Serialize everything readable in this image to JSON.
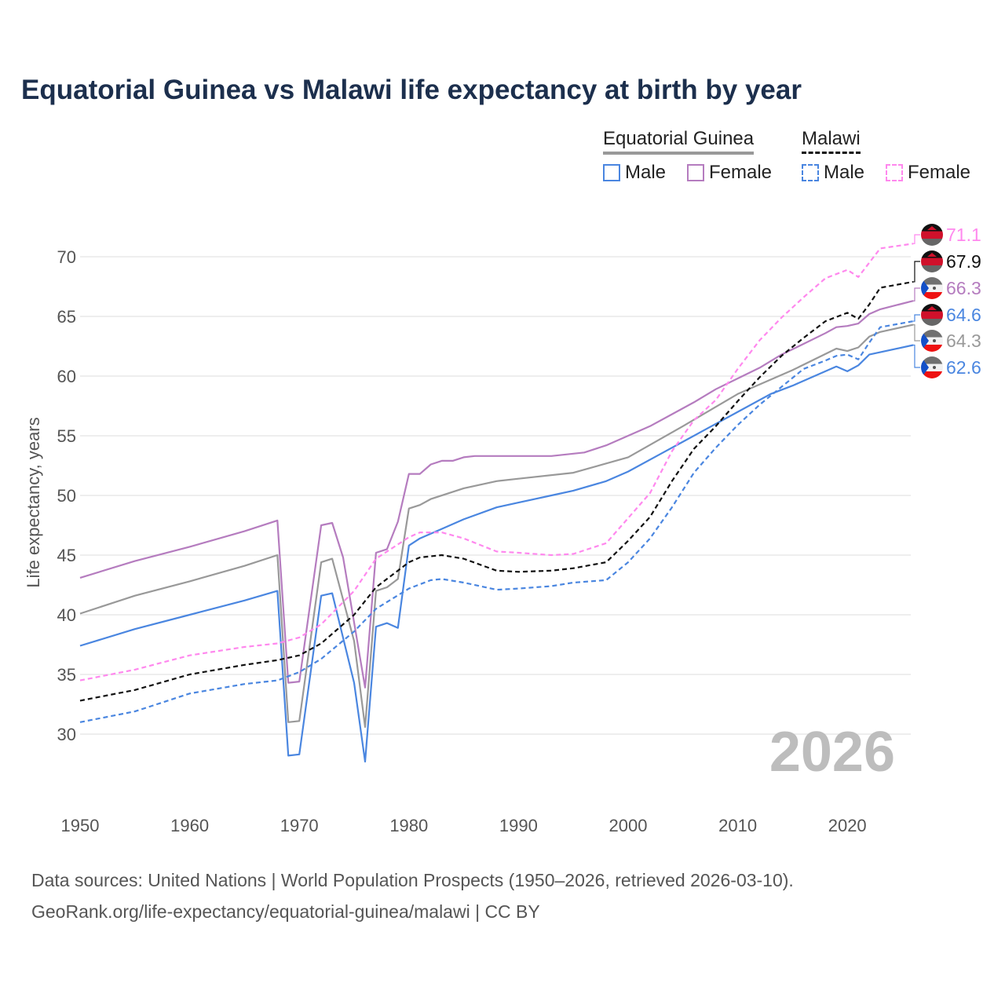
{
  "title": "Equatorial Guinea vs Malawi life expectancy at birth by year",
  "legend": {
    "groups": [
      {
        "label": "Equatorial Guinea",
        "color": "#999999",
        "dashed": false
      },
      {
        "label": "Malawi",
        "color": "#111111",
        "dashed": true
      }
    ],
    "items": [
      {
        "label": "Male",
        "color": "#4a86e0",
        "dashed": false
      },
      {
        "label": "Female",
        "color": "#b57cbf",
        "dashed": false
      },
      {
        "label": "Male",
        "color": "#4a86e0",
        "dashed": true
      },
      {
        "label": "Female",
        "color": "#ff88ee",
        "dashed": true
      }
    ]
  },
  "year_watermark": "2026",
  "source_line1": "Data sources: United Nations | World Population Prospects (1950–2026, retrieved 2026-03-10).",
  "source_line2": "GeoRank.org/life-expectancy/equatorial-guinea/malawi | CC BY",
  "chart_data": {
    "type": "line",
    "title": "Equatorial Guinea vs Malawi life expectancy at birth by year",
    "xlabel": "",
    "ylabel": "Life expectancy, years",
    "xlim": [
      1950,
      2026
    ],
    "ylim": [
      25.5,
      73
    ],
    "xticks": [
      1950,
      1960,
      1970,
      1980,
      1990,
      2000,
      2010,
      2020
    ],
    "yticks": [
      30,
      35,
      40,
      45,
      50,
      55,
      60,
      65,
      70
    ],
    "grid": true,
    "legend_position": "top-right",
    "series": [
      {
        "name": "Equatorial Guinea (total)",
        "color": "#999999",
        "dashed": false,
        "end_label": "64.3",
        "flag": "equatorial-guinea",
        "points": [
          [
            1950,
            40.1
          ],
          [
            1955,
            41.6
          ],
          [
            1960,
            42.8
          ],
          [
            1965,
            44.1
          ],
          [
            1968,
            45.0
          ],
          [
            1969,
            31.0
          ],
          [
            1970,
            31.1
          ],
          [
            1972,
            44.4
          ],
          [
            1973,
            44.7
          ],
          [
            1975,
            37.8
          ],
          [
            1976,
            30.6
          ],
          [
            1977,
            42.0
          ],
          [
            1978,
            42.3
          ],
          [
            1979,
            43.0
          ],
          [
            1980,
            48.9
          ],
          [
            1981,
            49.2
          ],
          [
            1982,
            49.7
          ],
          [
            1985,
            50.6
          ],
          [
            1988,
            51.2
          ],
          [
            1990,
            51.4
          ],
          [
            1995,
            51.9
          ],
          [
            2000,
            53.2
          ],
          [
            2005,
            55.8
          ],
          [
            2010,
            58.5
          ],
          [
            2015,
            60.5
          ],
          [
            2019,
            62.3
          ],
          [
            2020,
            62.1
          ],
          [
            2021,
            62.4
          ],
          [
            2022,
            63.3
          ],
          [
            2023,
            63.7
          ],
          [
            2026,
            64.3
          ]
        ]
      },
      {
        "name": "Equatorial Guinea Male",
        "color": "#4a86e0",
        "dashed": false,
        "end_label": "62.6",
        "flag": "equatorial-guinea",
        "points": [
          [
            1950,
            37.4
          ],
          [
            1955,
            38.8
          ],
          [
            1960,
            40.0
          ],
          [
            1965,
            41.2
          ],
          [
            1968,
            42.0
          ],
          [
            1969,
            28.2
          ],
          [
            1970,
            28.3
          ],
          [
            1972,
            41.6
          ],
          [
            1973,
            41.8
          ],
          [
            1975,
            34.3
          ],
          [
            1976,
            27.7
          ],
          [
            1977,
            39.0
          ],
          [
            1978,
            39.3
          ],
          [
            1979,
            38.9
          ],
          [
            1980,
            45.8
          ],
          [
            1981,
            46.4
          ],
          [
            1983,
            47.2
          ],
          [
            1985,
            48.0
          ],
          [
            1988,
            49.0
          ],
          [
            1990,
            49.4
          ],
          [
            1993,
            50.0
          ],
          [
            1995,
            50.4
          ],
          [
            1998,
            51.2
          ],
          [
            2000,
            52.0
          ],
          [
            2003,
            53.5
          ],
          [
            2005,
            54.5
          ],
          [
            2008,
            56.0
          ],
          [
            2010,
            57.0
          ],
          [
            2013,
            58.5
          ],
          [
            2015,
            59.2
          ],
          [
            2019,
            60.8
          ],
          [
            2020,
            60.4
          ],
          [
            2021,
            60.9
          ],
          [
            2022,
            61.8
          ],
          [
            2023,
            62.0
          ],
          [
            2026,
            62.6
          ]
        ]
      },
      {
        "name": "Equatorial Guinea Female",
        "color": "#b57cbf",
        "dashed": false,
        "end_label": "66.3",
        "flag": "equatorial-guinea",
        "points": [
          [
            1950,
            43.1
          ],
          [
            1955,
            44.5
          ],
          [
            1960,
            45.7
          ],
          [
            1965,
            47.0
          ],
          [
            1968,
            47.9
          ],
          [
            1969,
            34.3
          ],
          [
            1970,
            34.4
          ],
          [
            1972,
            47.5
          ],
          [
            1973,
            47.7
          ],
          [
            1974,
            44.8
          ],
          [
            1976,
            33.9
          ],
          [
            1977,
            45.2
          ],
          [
            1978,
            45.5
          ],
          [
            1979,
            47.8
          ],
          [
            1980,
            51.8
          ],
          [
            1981,
            51.8
          ],
          [
            1982,
            52.6
          ],
          [
            1983,
            52.9
          ],
          [
            1984,
            52.9
          ],
          [
            1985,
            53.2
          ],
          [
            1986,
            53.3
          ],
          [
            1990,
            53.3
          ],
          [
            1993,
            53.3
          ],
          [
            1996,
            53.6
          ],
          [
            1998,
            54.2
          ],
          [
            2000,
            55.0
          ],
          [
            2002,
            55.8
          ],
          [
            2004,
            56.8
          ],
          [
            2006,
            57.8
          ],
          [
            2008,
            58.9
          ],
          [
            2010,
            59.8
          ],
          [
            2012,
            60.7
          ],
          [
            2014,
            61.8
          ],
          [
            2016,
            62.7
          ],
          [
            2018,
            63.6
          ],
          [
            2019,
            64.1
          ],
          [
            2020,
            64.2
          ],
          [
            2021,
            64.4
          ],
          [
            2022,
            65.2
          ],
          [
            2023,
            65.6
          ],
          [
            2026,
            66.3
          ]
        ]
      },
      {
        "name": "Malawi (total)",
        "color": "#111111",
        "dashed": true,
        "end_label": "67.9",
        "flag": "malawi",
        "points": [
          [
            1950,
            32.8
          ],
          [
            1955,
            33.7
          ],
          [
            1960,
            35.0
          ],
          [
            1965,
            35.8
          ],
          [
            1968,
            36.2
          ],
          [
            1970,
            36.6
          ],
          [
            1972,
            37.6
          ],
          [
            1975,
            40.0
          ],
          [
            1977,
            42.3
          ],
          [
            1980,
            44.4
          ],
          [
            1981,
            44.8
          ],
          [
            1983,
            45.0
          ],
          [
            1985,
            44.7
          ],
          [
            1988,
            43.7
          ],
          [
            1990,
            43.6
          ],
          [
            1993,
            43.7
          ],
          [
            1995,
            43.9
          ],
          [
            1998,
            44.4
          ],
          [
            2000,
            46.2
          ],
          [
            2002,
            48.2
          ],
          [
            2004,
            51.2
          ],
          [
            2006,
            53.9
          ],
          [
            2008,
            55.8
          ],
          [
            2010,
            57.9
          ],
          [
            2012,
            59.9
          ],
          [
            2014,
            61.7
          ],
          [
            2016,
            63.2
          ],
          [
            2018,
            64.6
          ],
          [
            2020,
            65.3
          ],
          [
            2021,
            64.8
          ],
          [
            2022,
            66.0
          ],
          [
            2023,
            67.4
          ],
          [
            2026,
            67.9
          ]
        ]
      },
      {
        "name": "Malawi Male",
        "color": "#4a86e0",
        "dashed": true,
        "end_label": "64.6",
        "flag": "malawi",
        "points": [
          [
            1950,
            31.0
          ],
          [
            1955,
            31.9
          ],
          [
            1960,
            33.4
          ],
          [
            1965,
            34.2
          ],
          [
            1968,
            34.5
          ],
          [
            1970,
            35.2
          ],
          [
            1972,
            36.3
          ],
          [
            1975,
            38.6
          ],
          [
            1977,
            40.5
          ],
          [
            1980,
            42.2
          ],
          [
            1982,
            42.9
          ],
          [
            1983,
            43.0
          ],
          [
            1985,
            42.7
          ],
          [
            1988,
            42.1
          ],
          [
            1990,
            42.2
          ],
          [
            1993,
            42.4
          ],
          [
            1995,
            42.7
          ],
          [
            1998,
            42.9
          ],
          [
            2000,
            44.4
          ],
          [
            2002,
            46.4
          ],
          [
            2004,
            49.0
          ],
          [
            2006,
            51.9
          ],
          [
            2008,
            54.0
          ],
          [
            2010,
            55.9
          ],
          [
            2012,
            57.6
          ],
          [
            2014,
            59.1
          ],
          [
            2016,
            60.6
          ],
          [
            2018,
            61.3
          ],
          [
            2019,
            61.7
          ],
          [
            2020,
            61.8
          ],
          [
            2021,
            61.4
          ],
          [
            2022,
            62.8
          ],
          [
            2023,
            64.1
          ],
          [
            2026,
            64.6
          ]
        ]
      },
      {
        "name": "Malawi Female",
        "color": "#ff88ee",
        "dashed": true,
        "end_label": "71.1",
        "flag": "malawi",
        "points": [
          [
            1950,
            34.5
          ],
          [
            1955,
            35.4
          ],
          [
            1960,
            36.6
          ],
          [
            1965,
            37.3
          ],
          [
            1968,
            37.6
          ],
          [
            1970,
            38.1
          ],
          [
            1972,
            39.2
          ],
          [
            1975,
            42.0
          ],
          [
            1977,
            44.7
          ],
          [
            1980,
            46.5
          ],
          [
            1981,
            46.9
          ],
          [
            1983,
            46.9
          ],
          [
            1985,
            46.4
          ],
          [
            1988,
            45.3
          ],
          [
            1990,
            45.2
          ],
          [
            1993,
            45.0
          ],
          [
            1995,
            45.1
          ],
          [
            1998,
            46.0
          ],
          [
            2000,
            48.1
          ],
          [
            2002,
            50.2
          ],
          [
            2004,
            53.7
          ],
          [
            2006,
            56.3
          ],
          [
            2008,
            58.0
          ],
          [
            2010,
            60.6
          ],
          [
            2012,
            63.0
          ],
          [
            2014,
            64.9
          ],
          [
            2016,
            66.6
          ],
          [
            2018,
            68.2
          ],
          [
            2020,
            68.9
          ],
          [
            2021,
            68.3
          ],
          [
            2022,
            69.5
          ],
          [
            2023,
            70.7
          ],
          [
            2026,
            71.1
          ]
        ]
      }
    ]
  }
}
